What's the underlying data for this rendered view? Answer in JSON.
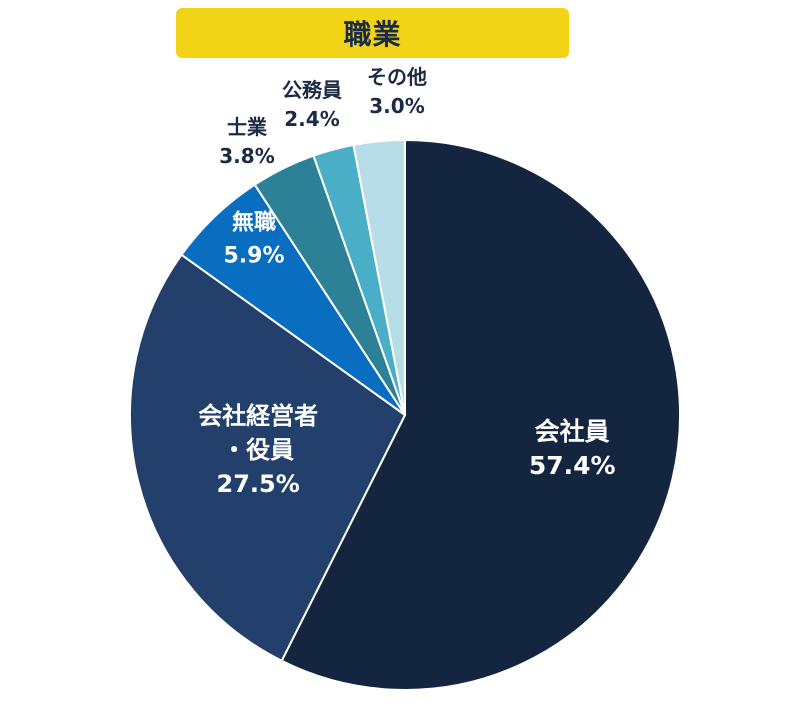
{
  "title": "職業",
  "colors": {
    "title_bg": "#f2d416",
    "title_text": "#1b2a45"
  },
  "chart_data": {
    "type": "pie",
    "title": "職業",
    "slices": [
      {
        "label": "会社員",
        "value": 57.4,
        "value_label": "57.4%",
        "color": "#13253f",
        "text_color": "#ffffff",
        "label_lines": [
          "会社員"
        ]
      },
      {
        "label": "会社経営者・役員",
        "value": 27.5,
        "value_label": "27.5%",
        "color": "#22406b",
        "text_color": "#ffffff",
        "label_lines": [
          "会社経営者",
          "・役員"
        ]
      },
      {
        "label": "無職",
        "value": 5.9,
        "value_label": "5.9%",
        "color": "#0a6ec0",
        "text_color": "#ffffff",
        "label_lines": [
          "無職"
        ]
      },
      {
        "label": "士業",
        "value": 3.8,
        "value_label": "3.8%",
        "color": "#2d8197",
        "text_color": "#1b2a45",
        "label_lines": [
          "士業"
        ]
      },
      {
        "label": "公務員",
        "value": 2.4,
        "value_label": "2.4%",
        "color": "#4aaec7",
        "text_color": "#1b2a45",
        "label_lines": [
          "公務員"
        ]
      },
      {
        "label": "その他",
        "value": 3.0,
        "value_label": "3.0%",
        "color": "#b7dde8",
        "text_color": "#1b2a45",
        "label_lines": [
          "その他"
        ]
      }
    ],
    "start": "12 o'clock",
    "direction": "clockwise",
    "legend": "none"
  }
}
